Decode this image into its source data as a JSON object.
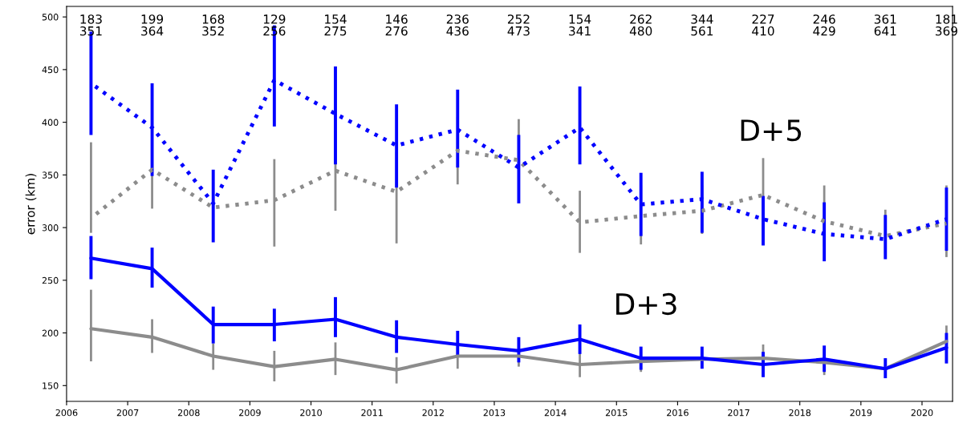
{
  "chart_data": {
    "type": "line",
    "ylabel": "error (km)",
    "x": [
      2006.4,
      2007.4,
      2008.4,
      2009.4,
      2010.4,
      2011.4,
      2012.4,
      2013.4,
      2014.4,
      2015.4,
      2016.4,
      2017.4,
      2018.4,
      2019.4,
      2020.4
    ],
    "xlim": [
      2006,
      2020.5
    ],
    "xticks": [
      2006,
      2007,
      2008,
      2009,
      2010,
      2011,
      2012,
      2013,
      2014,
      2015,
      2016,
      2017,
      2018,
      2019,
      2020
    ],
    "ylim": [
      135,
      510
    ],
    "yticks": [
      150,
      200,
      250,
      300,
      350,
      400,
      450,
      500
    ],
    "grid": false,
    "legend": false,
    "marker": "none",
    "series": [
      {
        "color": "#8c8c8c",
        "line_style": "dotted",
        "values": [
          309,
          355,
          319,
          326,
          354,
          334,
          373,
          364,
          305,
          311,
          316,
          331,
          306,
          292,
          304
        ],
        "errors": [
          [
            295,
            381
          ],
          [
            318,
            390
          ],
          null,
          [
            282,
            365
          ],
          [
            316,
            392
          ],
          [
            285,
            372
          ],
          [
            341,
            405
          ],
          [
            325,
            403
          ],
          [
            276,
            335
          ],
          [
            284,
            340
          ],
          [
            294,
            340
          ],
          [
            298,
            366
          ],
          [
            282,
            340
          ],
          [
            275,
            317
          ],
          [
            272,
            340
          ]
        ]
      },
      {
        "color": "#0000ff",
        "line_style": "dotted",
        "values": [
          437,
          395,
          323,
          440,
          408,
          378,
          393,
          357,
          395,
          322,
          327,
          308,
          294,
          289,
          308
        ],
        "errors": [
          [
            388,
            486
          ],
          [
            349,
            437
          ],
          [
            286,
            355
          ],
          [
            396,
            492
          ],
          [
            360,
            453
          ],
          [
            338,
            417
          ],
          [
            357,
            431
          ],
          [
            323,
            388
          ],
          [
            360,
            434
          ],
          [
            292,
            352
          ],
          [
            295,
            353
          ],
          [
            283,
            330
          ],
          [
            268,
            324
          ],
          [
            270,
            312
          ],
          [
            278,
            338
          ]
        ]
      },
      {
        "color": "#8c8c8c",
        "line_style": "solid",
        "values": [
          204,
          196,
          178,
          168,
          175,
          165,
          178,
          178,
          170,
          173,
          175,
          176,
          172,
          166,
          192
        ],
        "errors": [
          [
            173,
            241
          ],
          [
            181,
            213
          ],
          [
            165,
            190
          ],
          [
            154,
            183
          ],
          [
            160,
            191
          ],
          [
            152,
            177
          ],
          [
            166,
            187
          ],
          [
            168,
            188
          ],
          [
            158,
            185
          ],
          [
            163,
            185
          ],
          null,
          [
            165,
            189
          ],
          [
            160,
            185
          ],
          null,
          [
            174,
            207
          ]
        ]
      },
      {
        "color": "#0000ff",
        "line_style": "solid",
        "values": [
          271,
          261,
          208,
          208,
          213,
          196,
          189,
          183,
          194,
          176,
          176,
          170,
          175,
          166,
          186
        ],
        "errors": [
          [
            251,
            292
          ],
          [
            243,
            281
          ],
          [
            190,
            225
          ],
          [
            192,
            223
          ],
          [
            196,
            234
          ],
          [
            181,
            212
          ],
          [
            177,
            202
          ],
          [
            172,
            196
          ],
          [
            180,
            208
          ],
          [
            165,
            187
          ],
          [
            166,
            187
          ],
          [
            158,
            182
          ],
          [
            163,
            188
          ],
          [
            157,
            176
          ],
          [
            171,
            200
          ]
        ]
      }
    ],
    "annotations": [
      "183\n351",
      "199\n364",
      "168\n352",
      "129\n256",
      "154\n275",
      "146\n276",
      "236\n436",
      "252\n473",
      "154\n341",
      "262\n480",
      "344\n561",
      "227\n410",
      "246\n429",
      "361\n641",
      "181\n369",
      "D+5",
      "D+3"
    ]
  }
}
